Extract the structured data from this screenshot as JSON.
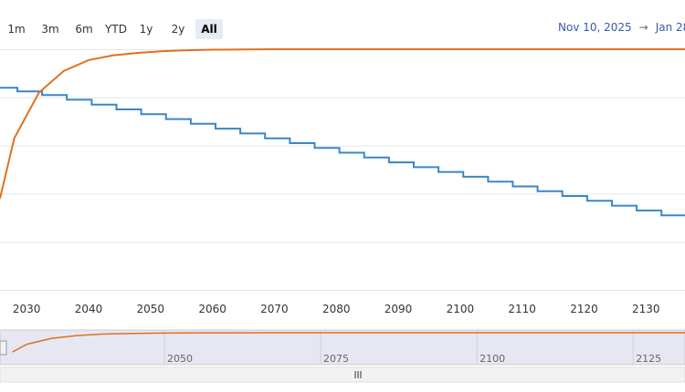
{
  "range_selector": {
    "buttons": [
      "1m",
      "3m",
      "6m",
      "YTD",
      "1y",
      "2y",
      "All"
    ],
    "active": "All"
  },
  "date_range": {
    "from": "Nov 10, 2025",
    "arrow": "→",
    "to": "Jan 28,"
  },
  "colors": {
    "series_blue": "#3a86c8",
    "series_orange": "#e07020",
    "grid": "#e6e6e6",
    "nav_fill": "#e6e7f3",
    "axis_text": "#333333"
  },
  "chart_data": {
    "type": "line",
    "xlim": [
      2025.7,
      2136.3
    ],
    "ylim": [
      0,
      100
    ],
    "grid": true,
    "x_ticks": [
      "2030",
      "2040",
      "2050",
      "2060",
      "2070",
      "2080",
      "2090",
      "2100",
      "2110",
      "2120",
      "2130"
    ],
    "series": [
      {
        "type": "step",
        "color": "#3a86c8",
        "x": [
          2025.7,
          2028.5,
          2032.5,
          2036.5,
          2040.5,
          2044.5,
          2048.5,
          2052.5,
          2056.5,
          2060.5,
          2064.5,
          2068.5,
          2072.5,
          2076.5,
          2080.5,
          2084.5,
          2088.5,
          2092.5,
          2096.5,
          2100.5,
          2104.5,
          2108.5,
          2112.5,
          2116.5,
          2120.5,
          2124.5,
          2128.5,
          2132.5,
          2136.3
        ],
        "y": [
          84,
          82.5,
          81,
          79,
          77,
          75,
          73,
          71,
          69,
          67,
          65,
          63,
          61,
          59,
          57,
          55,
          53,
          51,
          49,
          47,
          45,
          43,
          41,
          39,
          37,
          35,
          33,
          31,
          31
        ]
      },
      {
        "type": "line",
        "color": "#e07020",
        "x": [
          2025.7,
          2028,
          2032,
          2036,
          2040,
          2044,
          2048,
          2052,
          2056,
          2060,
          2065,
          2070,
          2136.3
        ],
        "y": [
          38,
          63,
          82,
          91,
          95.5,
          97.5,
          98.5,
          99.2,
          99.6,
          99.8,
          99.9,
          100,
          100
        ]
      }
    ]
  },
  "navigator": {
    "x_ticks": [
      "2050",
      "2075",
      "2100",
      "2125"
    ],
    "xlim": [
      2023.7,
      2133.3
    ]
  }
}
